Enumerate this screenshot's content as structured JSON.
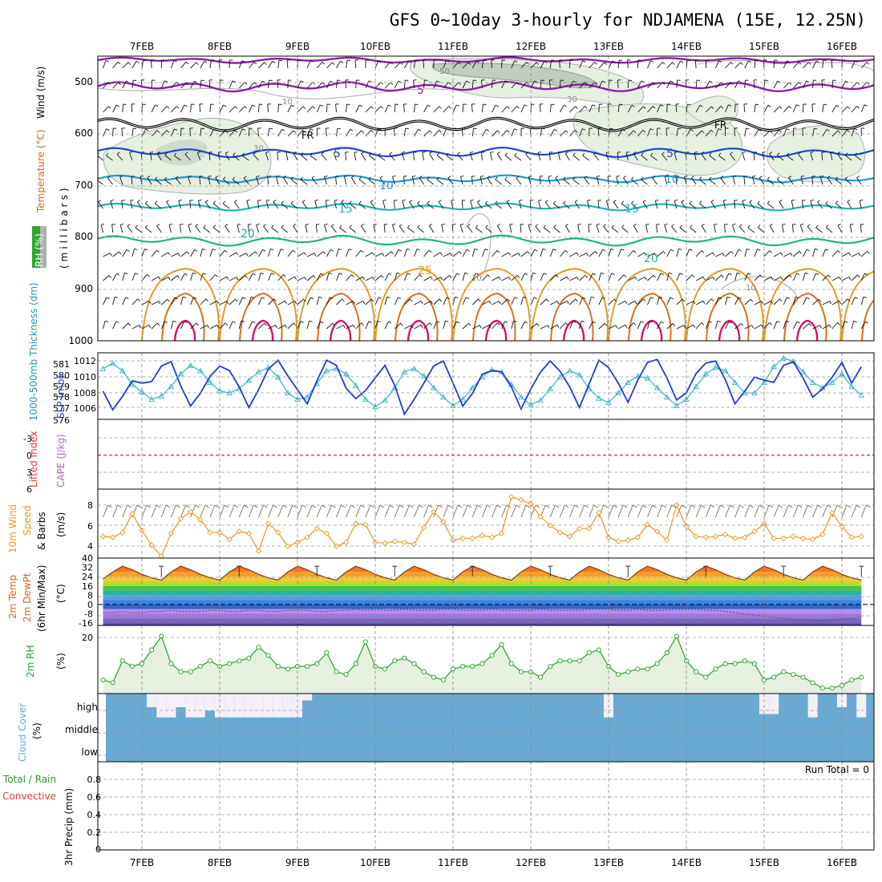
{
  "title": "GFS 0~10day 3-hourly for NDJAMENA (15E, 12.25N)",
  "dates": [
    "7FEB",
    "8FEB",
    "9FEB",
    "10FEB",
    "11FEB",
    "12FEB",
    "13FEB",
    "14FEB",
    "15FEB",
    "16FEB"
  ],
  "colors": {
    "purple": "#8a1ea8",
    "black": "#000000",
    "blue": "#1e46c8",
    "sky": "#1e96d2",
    "cyan": "#1eb4b4",
    "teal": "#1eb48c",
    "orange": "#e19b28",
    "darkorange": "#dc6e1e",
    "magenta": "#d2146e",
    "rh_fill": "#e6f0e1",
    "rh_dark": "#a0b4a0",
    "slp": "#1e3cc8",
    "thickness": "#32b4c8",
    "wind10": "#f0961e",
    "rh2m": "#28a028",
    "cloud": "#6aaad2",
    "lifted": "#e13c3c"
  },
  "panels": {
    "upper": {
      "labels": {
        "wind": "Wind (m/s)",
        "temperature": "Temperature (°C)",
        "rh": "RH (%)",
        "millibars": "(millibars)"
      },
      "pressure_ticks": [
        "500",
        "600",
        "700",
        "800",
        "900",
        "1000"
      ],
      "contour_labels": {
        "c5a": "5",
        "cFR1": "FR",
        "cFR2": "FR",
        "c5b": "5",
        "c5c": "5",
        "c10a": "10",
        "c10b": "10",
        "c15a": "15",
        "c15b": "15",
        "c20a": "20",
        "c20b": "20",
        "c25": "25",
        "rh50": "50",
        "rh30a": "30",
        "rh30b": "30",
        "rh10a": "10",
        "rh10b": "10",
        "rh10c": "10"
      }
    },
    "slp": {
      "labels": {
        "thickness": "1000-500mb Thickness (dm)",
        "slp": "SLP (mb)"
      },
      "left_ticks": [
        "581",
        "580",
        "579",
        "578",
        "577",
        "576"
      ],
      "right_ticks": [
        "1012",
        "1010",
        "1008",
        "1006"
      ]
    },
    "cape": {
      "labels": {
        "lifted": "Lifted Index",
        "cape": "CAPE (J/kg)"
      },
      "ticks": [
        "-3",
        "0",
        "3",
        "6"
      ]
    },
    "wind10": {
      "labels": {
        "line1": "10m Wind",
        "line2": "Speed",
        "line3": "& Barbs",
        "unit": "(m/s)"
      },
      "ticks": [
        "8",
        "6",
        "4"
      ]
    },
    "temp2m": {
      "labels": {
        "line1": "2m Temp",
        "line2": "2m DewPt",
        "line3": "(6hr Min/Max)",
        "unit": "(°C)"
      },
      "ticks": [
        "40",
        "32",
        "24",
        "16",
        "8",
        "0",
        "-8",
        "-16"
      ]
    },
    "rh2m": {
      "labels": {
        "name": "2m RH",
        "unit": "(%)"
      },
      "ticks": [
        "20"
      ]
    },
    "cloud": {
      "labels": {
        "name": "Cloud Cover",
        "unit": "(%)"
      },
      "levels": [
        "high",
        "middle",
        "low"
      ]
    },
    "precip": {
      "labels": {
        "line1": "Total / Rain",
        "line2": "Convective",
        "unit": "3hr Precip (mm)"
      },
      "ticks": [
        "0.8",
        "0.6",
        "0.4",
        "0.2",
        "0"
      ],
      "run_total": "Run Total = 0"
    }
  },
  "chart_data": {
    "type": "line",
    "x": [
      "6FEB12",
      "6FEB15",
      "6FEB18",
      "6FEB21",
      "7FEB00",
      "7FEB03",
      "7FEB06",
      "7FEB09",
      "7FEB12",
      "7FEB15",
      "7FEB18",
      "7FEB21",
      "8FEB00",
      "8FEB03",
      "8FEB06",
      "8FEB09",
      "8FEB12",
      "8FEB15",
      "8FEB18",
      "8FEB21",
      "9FEB00",
      "9FEB03",
      "9FEB06",
      "9FEB09",
      "9FEB12",
      "9FEB15",
      "9FEB18",
      "9FEB21",
      "10FEB00",
      "10FEB03",
      "10FEB06",
      "10FEB09",
      "10FEB12",
      "10FEB15",
      "10FEB18",
      "10FEB21",
      "11FEB00",
      "11FEB03",
      "11FEB06",
      "11FEB09",
      "11FEB12",
      "11FEB15",
      "11FEB18",
      "11FEB21",
      "12FEB00",
      "12FEB03",
      "12FEB06",
      "12FEB09",
      "12FEB12",
      "12FEB15",
      "12FEB18",
      "12FEB21",
      "13FEB00",
      "13FEB03",
      "13FEB06",
      "13FEB09",
      "13FEB12",
      "13FEB15",
      "13FEB18",
      "13FEB21",
      "14FEB00",
      "14FEB03",
      "14FEB06",
      "14FEB09",
      "14FEB12",
      "14FEB15",
      "14FEB18",
      "14FEB21",
      "15FEB00",
      "15FEB03",
      "15FEB06",
      "15FEB09",
      "15FEB12",
      "15FEB15",
      "15FEB18",
      "15FEB21",
      "16FEB00",
      "16FEB03",
      "16FEB06"
    ],
    "series": [
      {
        "name": "SLP (mb)",
        "values": [
          1008.3,
          1005.8,
          1007.6,
          1009.7,
          1009.4,
          1009.6,
          1011.7,
          1012.3,
          1009.0,
          1006.3,
          1008.0,
          1010.3,
          1011.7,
          1011.1,
          1008.9,
          1006.1,
          1008.5,
          1011.3,
          1012.5,
          1010.4,
          1008.5,
          1006.6,
          1009.7,
          1012.5,
          1011.8,
          1008.7,
          1007.3,
          1008.4,
          1010.1,
          1011.8,
          1009.1,
          1005.2,
          1007.2,
          1009.4,
          1011.7,
          1012.4,
          1009.4,
          1006.3,
          1008.0,
          1010.6,
          1011.1,
          1010.9,
          1008.9,
          1005.9,
          1008.6,
          1010.9,
          1012.4,
          1011.0,
          1008.9,
          1006.1,
          1009.3,
          1012.5,
          1011.5,
          1009.4,
          1006.8,
          1009.8,
          1012.2,
          1012.6,
          1010.1,
          1007.1,
          1008.1,
          1010.7,
          1012.1,
          1012.4,
          1009.9,
          1006.6,
          1008.3,
          1010.2,
          1009.8,
          1009.5,
          1011.8,
          1012.3,
          1010.1,
          1007.5,
          1008.6,
          1010.2,
          1012.2,
          1009.4,
          1011.6
        ]
      },
      {
        "name": "1000-500mb Thickness (dm)",
        "values": [
          580.3,
          580.8,
          580.1,
          578.8,
          578.1,
          577.4,
          577.7,
          578.6,
          579.8,
          580.6,
          580.1,
          579.0,
          578.2,
          578.0,
          578.4,
          579.2,
          580.0,
          580.4,
          579.5,
          578.0,
          577.4,
          577.6,
          578.9,
          580.1,
          580.3,
          579.8,
          578.7,
          577.4,
          576.7,
          577.3,
          578.5,
          580.0,
          580.3,
          579.6,
          578.5,
          577.6,
          576.8,
          577.4,
          578.5,
          579.5,
          580.2,
          580.0,
          578.8,
          577.6,
          576.9,
          577.3,
          578.4,
          579.5,
          580.1,
          579.7,
          578.4,
          577.5,
          577.1,
          578.0,
          579.0,
          579.6,
          579.4,
          578.5,
          577.6,
          576.8,
          577.4,
          578.6,
          579.8,
          580.4,
          580.1,
          579.0,
          578.0,
          578.0,
          579.0,
          580.5,
          581.3,
          581.0,
          580.0,
          579.0,
          578.5,
          579.0,
          579.8,
          578.6,
          577.8
        ]
      },
      {
        "name": "10m Wind Speed (m/s)",
        "values": [
          5.2,
          5.1,
          5.6,
          7.5,
          5.8,
          4.3,
          3.2,
          5.5,
          7.0,
          7.7,
          6.9,
          5.6,
          5.6,
          4.9,
          5.7,
          5.5,
          3.7,
          6.5,
          5.6,
          4.2,
          4.6,
          5.1,
          6.0,
          5.5,
          4.2,
          4.6,
          6.5,
          6.4,
          4.6,
          4.5,
          4.7,
          4.6,
          4.4,
          6.1,
          7.7,
          6.7,
          4.8,
          5.0,
          5.0,
          5.3,
          5.1,
          5.5,
          9.2,
          8.9,
          8.5,
          7.2,
          6.3,
          5.6,
          5.2,
          6.0,
          6.0,
          7.6,
          5.1,
          4.7,
          4.8,
          5.1,
          6.4,
          5.7,
          4.8,
          8.4,
          6.2,
          5.2,
          5.1,
          5.2,
          5.4,
          5.0,
          5.1,
          5.7,
          6.5,
          5.0,
          5.0,
          5.2,
          5.0,
          4.9,
          5.4,
          7.6,
          6.2,
          5.1,
          5.2
        ]
      },
      {
        "name": "2m RH (%)",
        "values": [
          5,
          4,
          12,
          10,
          11,
          16,
          21,
          11,
          8,
          8,
          10,
          12,
          10,
          11,
          12,
          13,
          17,
          14,
          10,
          9,
          10,
          10,
          11,
          15,
          8,
          7,
          11,
          19,
          10,
          9,
          12,
          13,
          11,
          8,
          6,
          5,
          9,
          10,
          10,
          11,
          14,
          18,
          11,
          8,
          8,
          6,
          10,
          12,
          12,
          12,
          15,
          16,
          10,
          7,
          8,
          9,
          9,
          11,
          15,
          21,
          12,
          8,
          6,
          9,
          11,
          11,
          12,
          11,
          5,
          6,
          8,
          7,
          6,
          4,
          2,
          2,
          3,
          5,
          6
        ]
      },
      {
        "name": "2m Temp (°C)",
        "values": [
          22,
          28,
          33,
          30,
          26,
          23,
          21,
          28,
          33,
          30,
          26,
          23,
          21,
          28,
          33,
          30,
          26,
          23,
          21,
          28,
          33,
          30,
          26,
          23,
          21,
          28,
          33,
          30,
          26,
          23,
          21,
          28,
          33,
          30,
          26,
          23,
          21,
          28,
          33,
          30,
          26,
          23,
          21,
          28,
          33,
          30,
          26,
          23,
          21,
          28,
          33,
          30,
          26,
          23,
          21,
          28,
          33,
          30,
          26,
          23,
          21,
          28,
          33,
          30,
          26,
          23,
          21,
          28,
          33,
          30,
          26,
          23,
          21,
          28,
          33,
          30,
          26,
          23,
          21
        ]
      },
      {
        "name": "2m DewPt (°C)",
        "values": [
          -7,
          -7,
          -6,
          -7,
          -7,
          -6,
          -6,
          -5,
          -6,
          -6,
          -6,
          -5,
          -5,
          -6,
          -6,
          -5,
          -5,
          -6,
          -6,
          -5,
          -5,
          -5,
          -6,
          -6,
          -5,
          -5,
          -4,
          -5,
          -4,
          -5,
          -5,
          -4,
          -5,
          -5,
          -5,
          -4,
          -4,
          -5,
          -5,
          -5,
          -4,
          -5,
          -5,
          -5,
          -5,
          -4,
          -5,
          -5,
          -5,
          -5,
          -4,
          -4,
          -4,
          -5,
          -5,
          -4,
          -5,
          -5,
          -5,
          -4,
          -4,
          -4,
          -5,
          -5,
          -6,
          -7,
          -8,
          -9,
          -10,
          -11,
          -12,
          -13,
          -13,
          -14,
          -14,
          -13,
          -12,
          -12,
          -11
        ]
      }
    ],
    "xlim": [
      "6FEB12",
      "16FEB06"
    ],
    "ylims": {
      "pressure_mb": [
        1000,
        450
      ],
      "slp_mb": [
        1004.5,
        1013.5
      ],
      "thickness_dm": [
        575.5,
        581.8
      ],
      "lifted_index": [
        6,
        -6
      ],
      "wind10_ms": [
        3,
        10
      ],
      "temp2m_c": [
        -18,
        40
      ],
      "rh2m_pct": [
        0,
        25
      ],
      "precip_mm": [
        0,
        1
      ]
    },
    "cloud_high_clear_fraction": [
      0,
      0,
      0,
      0,
      0,
      0.2,
      0.35,
      0.35,
      0.2,
      0.35,
      0.35,
      0.25,
      0.35,
      0.35,
      0.35,
      0.35,
      0.35,
      0.35,
      0.35,
      0.35,
      0.35,
      0.1,
      0,
      0,
      0,
      0,
      0,
      0,
      0,
      0,
      0,
      0,
      0,
      0,
      0,
      0,
      0,
      0,
      0,
      0,
      0,
      0,
      0,
      0,
      0,
      0,
      0,
      0,
      0,
      0,
      0,
      0,
      0.35,
      0,
      0,
      0,
      0,
      0,
      0,
      0,
      0,
      0,
      0,
      0,
      0,
      0,
      0,
      0,
      0.3,
      0.3,
      0,
      0,
      0,
      0.35,
      0,
      0,
      0.2,
      0,
      0.35
    ],
    "grid": true
  }
}
